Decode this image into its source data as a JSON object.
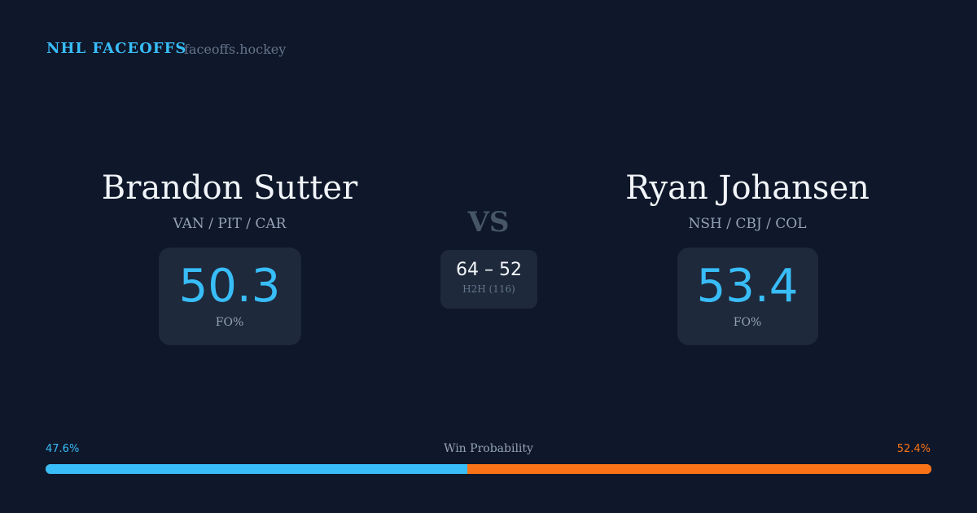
{
  "header": {
    "brand": "NHL FACEOFFS",
    "site": "faceoffs.hockey"
  },
  "left": {
    "name": "Brandon Sutter",
    "teams": "VAN / PIT / CAR",
    "fo": "50.3",
    "fo_label": "FO%"
  },
  "right": {
    "name": "Ryan Johansen",
    "teams": "NSH / CBJ / COL",
    "fo": "53.4",
    "fo_label": "FO%"
  },
  "vs": "VS",
  "h2h": {
    "score": "64 – 52",
    "label": "H2H (116)"
  },
  "win": {
    "label": "Win Probability",
    "left_text": "47.6%",
    "right_text": "52.4%",
    "left_pct": 47.6,
    "right_pct": 52.4,
    "left_color": "#38bdf8",
    "right_color": "#f97316"
  }
}
